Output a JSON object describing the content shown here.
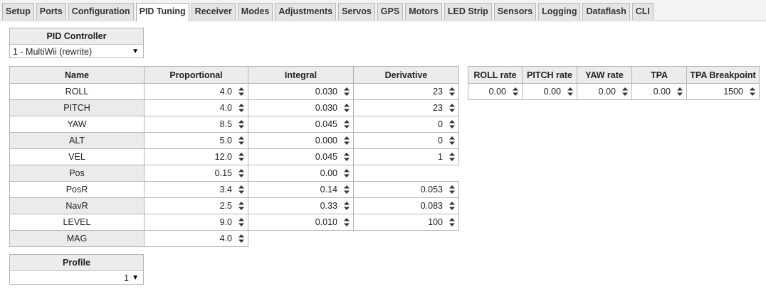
{
  "tabs": [
    "Setup",
    "Ports",
    "Configuration",
    "PID Tuning",
    "Receiver",
    "Modes",
    "Adjustments",
    "Servos",
    "GPS",
    "Motors",
    "LED Strip",
    "Sensors",
    "Logging",
    "Dataflash",
    "CLI"
  ],
  "active_tab": "PID Tuning",
  "pid_controller": {
    "label": "PID Controller",
    "selected": "1 - MultiWii (rewrite)"
  },
  "pid_table": {
    "headers": {
      "name": "Name",
      "p": "Proportional",
      "i": "Integral",
      "d": "Derivative"
    },
    "rows": [
      {
        "name": "ROLL",
        "p": "4.0",
        "i": "0.030",
        "d": "23"
      },
      {
        "name": "PITCH",
        "p": "4.0",
        "i": "0.030",
        "d": "23"
      },
      {
        "name": "YAW",
        "p": "8.5",
        "i": "0.045",
        "d": "0"
      },
      {
        "name": "ALT",
        "p": "5.0",
        "i": "0.000",
        "d": "0"
      },
      {
        "name": "VEL",
        "p": "12.0",
        "i": "0.045",
        "d": "1"
      },
      {
        "name": "Pos",
        "p": "0.15",
        "i": "0.00",
        "d": null
      },
      {
        "name": "PosR",
        "p": "3.4",
        "i": "0.14",
        "d": "0.053"
      },
      {
        "name": "NavR",
        "p": "2.5",
        "i": "0.33",
        "d": "0.083"
      },
      {
        "name": "LEVEL",
        "p": "9.0",
        "i": "0.010",
        "d": "100"
      },
      {
        "name": "MAG",
        "p": "4.0",
        "i": null,
        "d": null
      }
    ]
  },
  "rates_table": {
    "headers": [
      "ROLL rate",
      "PITCH rate",
      "YAW rate",
      "TPA",
      "TPA Breakpoint"
    ],
    "values": [
      "0.00",
      "0.00",
      "0.00",
      "0.00",
      "1500"
    ]
  },
  "profile": {
    "label": "Profile",
    "selected": "1"
  },
  "icons": {
    "spinner": "spinner-updown-icon",
    "dropdown": "dropdown-arrow-icon"
  }
}
